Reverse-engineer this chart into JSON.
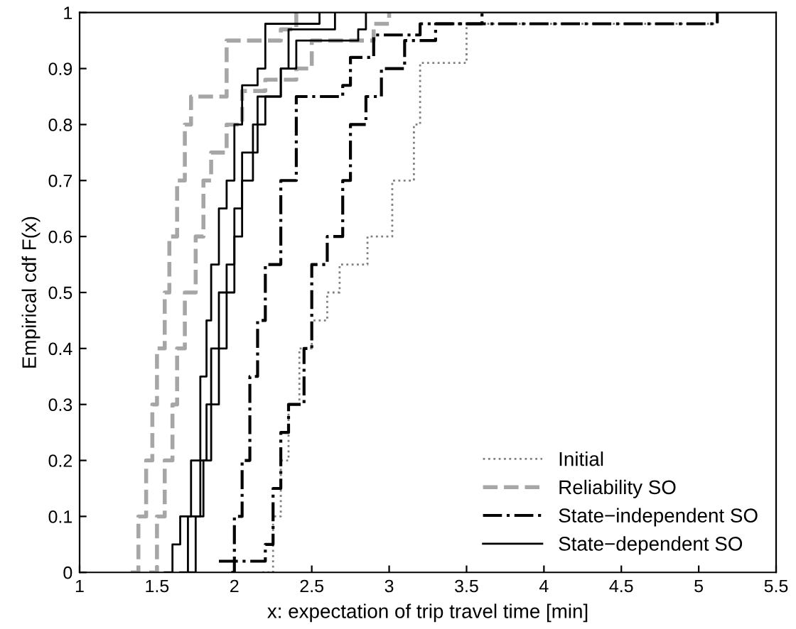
{
  "chart_data": {
    "type": "step",
    "xlabel": "x: expectation of trip travel time [min]",
    "ylabel": "Empirical cdf F(x)",
    "xlim": [
      1,
      5.5
    ],
    "xticks": [
      1,
      1.5,
      2,
      2.5,
      3,
      3.5,
      4,
      4.5,
      5,
      5.5
    ],
    "ylim": [
      0,
      1
    ],
    "yticks": [
      0,
      0.1,
      0.2,
      0.3,
      0.4,
      0.5,
      0.6,
      0.7,
      0.8,
      0.9,
      1
    ],
    "grid": false,
    "legend": "bottom right",
    "series": [
      {
        "name": "Initial",
        "color": "#808080",
        "line_style": "dotted",
        "x": [
          2.18,
          2.25,
          2.3,
          2.35,
          2.42,
          2.5,
          2.6,
          2.68,
          2.86,
          3.02,
          3.16,
          3.2,
          3.45,
          3.5,
          5.1,
          5.12
        ],
        "values": [
          0,
          0.1,
          0.2,
          0.3,
          0.4,
          0.45,
          0.5,
          0.55,
          0.6,
          0.7,
          0.8,
          0.91,
          0.91,
          0.98,
          0.98,
          1
        ]
      },
      {
        "name": "Reliability SO",
        "color": "#a6a6a6",
        "line_style": "dashed",
        "x": [
          1.33,
          1.38,
          1.43,
          1.47,
          1.5,
          1.55,
          1.58,
          1.63,
          1.68,
          1.72,
          1.85,
          1.95,
          2.3,
          2.4
        ],
        "values": [
          0,
          0.1,
          0.2,
          0.3,
          0.4,
          0.5,
          0.6,
          0.7,
          0.8,
          0.85,
          0.85,
          0.95,
          0.97,
          1
        ]
      },
      {
        "color": "#a6a6a6",
        "line_style": "dashed",
        "x": [
          1.45,
          1.5,
          1.55,
          1.6,
          1.63,
          1.68,
          1.75,
          1.8,
          1.85,
          1.95,
          2.05,
          2.2,
          2.4,
          2.5,
          2.9,
          3.0
        ],
        "values": [
          0,
          0.1,
          0.2,
          0.3,
          0.4,
          0.5,
          0.6,
          0.7,
          0.75,
          0.8,
          0.86,
          0.88,
          0.9,
          0.95,
          0.98,
          1
        ]
      },
      {
        "name": "State−independent SO",
        "color": "#000000",
        "line_style": "dashdot",
        "x": [
          1.98,
          2.0,
          2.05,
          2.1,
          2.15,
          2.2,
          2.3,
          2.4,
          2.7,
          2.75,
          2.9,
          3.2,
          5.1,
          5.12
        ],
        "values": [
          0,
          0.1,
          0.2,
          0.35,
          0.45,
          0.55,
          0.7,
          0.85,
          0.87,
          0.92,
          0.96,
          0.98,
          0.98,
          1
        ]
      },
      {
        "color": "#000000",
        "line_style": "dashdot",
        "x": [
          1.9,
          2.2,
          2.25,
          2.3,
          2.35,
          2.45,
          2.5,
          2.6,
          2.7,
          2.75,
          2.85,
          2.95,
          3.1,
          3.3,
          3.6
        ],
        "values": [
          0.02,
          0.05,
          0.15,
          0.25,
          0.3,
          0.4,
          0.55,
          0.6,
          0.7,
          0.8,
          0.85,
          0.9,
          0.95,
          0.98,
          1
        ]
      },
      {
        "name": "State−dependent SO",
        "color": "#000000",
        "line_style": "solid",
        "x": [
          1.55,
          1.6,
          1.65,
          1.72,
          1.78,
          1.82,
          1.85,
          1.9,
          1.95,
          2.0,
          2.05,
          2.15,
          2.2,
          2.5,
          2.55
        ],
        "values": [
          0,
          0.05,
          0.1,
          0.2,
          0.35,
          0.45,
          0.55,
          0.65,
          0.7,
          0.8,
          0.87,
          0.9,
          0.98,
          0.98,
          1
        ]
      },
      {
        "color": "#000000",
        "line_style": "solid",
        "x": [
          1.65,
          1.7,
          1.78,
          1.82,
          1.85,
          1.9,
          1.95,
          2.0,
          2.05,
          2.15,
          2.3,
          2.35,
          2.6,
          2.65
        ],
        "values": [
          0,
          0.1,
          0.2,
          0.3,
          0.4,
          0.5,
          0.55,
          0.65,
          0.75,
          0.85,
          0.9,
          0.97,
          0.97,
          1
        ]
      },
      {
        "color": "#000000",
        "line_style": "solid",
        "x": [
          1.7,
          1.75,
          1.8,
          1.85,
          1.9,
          1.95,
          2.0,
          2.05,
          2.12,
          2.2,
          2.3,
          2.4,
          2.8,
          2.85
        ],
        "values": [
          0,
          0.1,
          0.2,
          0.3,
          0.4,
          0.5,
          0.6,
          0.7,
          0.8,
          0.85,
          0.9,
          0.95,
          0.97,
          1
        ]
      }
    ]
  }
}
